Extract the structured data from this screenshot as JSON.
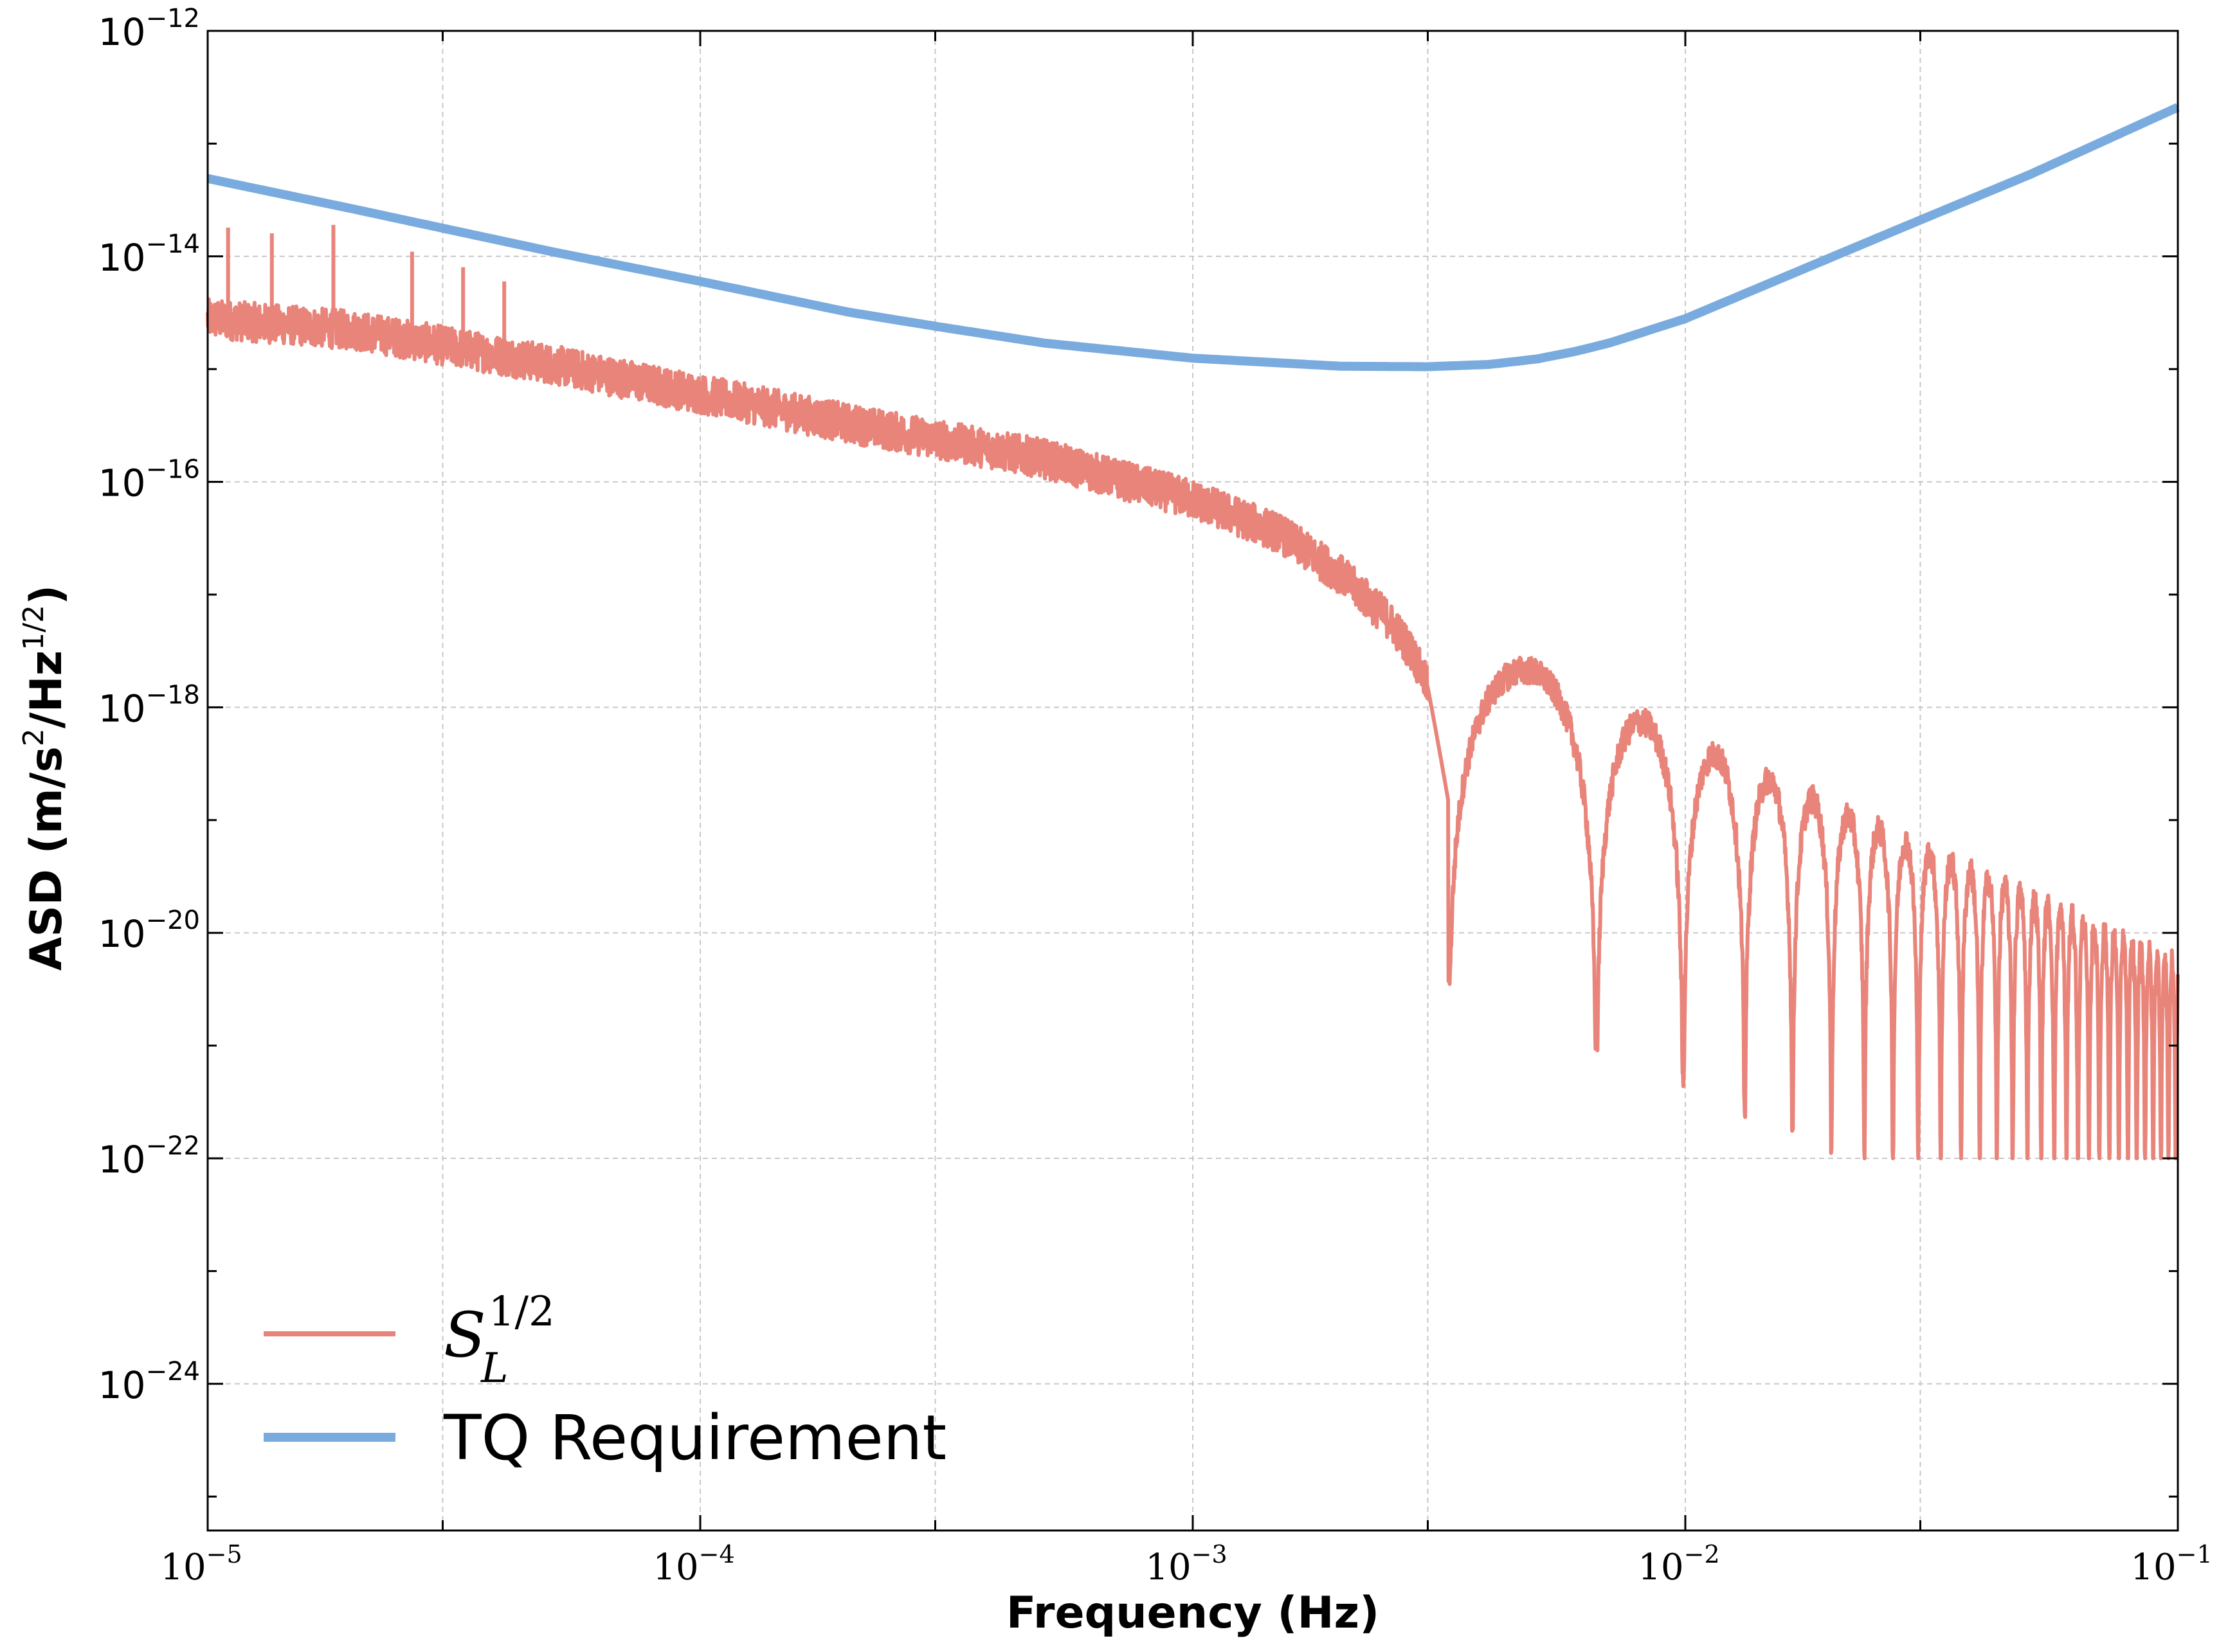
{
  "chart_data": {
    "type": "line",
    "xlabel": "Frequency (Hz)",
    "ylabel_main": "ASD (m/s",
    "ylabel_sup1": "2",
    "ylabel_mid": "/Hz",
    "ylabel_sup2": "1/2",
    "ylabel_end": ")",
    "xscale": "log",
    "yscale": "log",
    "xlim": [
      1e-05,
      0.1
    ],
    "ylim": [
      5e-26,
      1e-12
    ],
    "grid": true,
    "legend_position": "lower-left",
    "x_ticks": [
      {
        "base": "10",
        "exp": "−5"
      },
      {
        "base": "10",
        "exp": "−4"
      },
      {
        "base": "10",
        "exp": "−3"
      },
      {
        "base": "10",
        "exp": "−2"
      },
      {
        "base": "10",
        "exp": "−1"
      }
    ],
    "y_ticks": [
      {
        "base": "10",
        "exp": "−12"
      },
      {
        "base": "10",
        "exp": "−14"
      },
      {
        "base": "10",
        "exp": "−16"
      },
      {
        "base": "10",
        "exp": "−18"
      },
      {
        "base": "10",
        "exp": "−20"
      },
      {
        "base": "10",
        "exp": "−22"
      },
      {
        "base": "10",
        "exp": "−24"
      }
    ],
    "series": [
      {
        "name_base": "S",
        "name_sub": "L",
        "name_sup": "1/2",
        "color": "#e8847a",
        "envelope": {
          "x": [
            1e-05,
            2e-05,
            5e-05,
            0.0001,
            0.0002,
            0.0005,
            0.001,
            0.0015,
            0.002,
            0.0025,
            0.0028,
            0.003
          ],
          "y": [
            2.8e-15,
            2.2e-15,
            1.1e-15,
            6e-16,
            3.3e-16,
            1.6e-16,
            7e-17,
            3.5e-17,
            1.5e-17,
            6e-18,
            3e-18,
            1.5e-18
          ]
        },
        "lobes": {
          "peak_at_1e-2": 5e-19,
          "slope": -2,
          "first_null": 0.0033,
          "null_spacing": 0.0033,
          "null_depth_floor": 5e-23
        },
        "spikes": {
          "x": [
            1.1e-05,
            1.35e-05,
            1.8e-05,
            2.6e-05,
            3.3e-05,
            4e-05
          ],
          "y": [
            1.8e-14,
            1.6e-14,
            1.9e-14,
            1.1e-14,
            8e-15,
            6e-15
          ]
        }
      },
      {
        "name": "TQ Requirement",
        "color": "#7aabde",
        "x": [
          1e-05,
          2e-05,
          5e-05,
          0.0001,
          0.0002,
          0.0003,
          0.0005,
          0.001,
          0.002,
          0.003,
          0.004,
          0.005,
          0.006,
          0.007,
          0.01,
          0.02,
          0.03,
          0.05,
          0.1
        ],
        "y": [
          4.9e-14,
          2.6e-14,
          1.1e-14,
          6e-15,
          3.2e-15,
          2.4e-15,
          1.7e-15,
          1.25e-15,
          1.06e-15,
          1.05e-15,
          1.1e-15,
          1.23e-15,
          1.44e-15,
          1.7e-15,
          2.8e-15,
          1e-14,
          2.1e-14,
          5.3e-14,
          2.1e-13
        ]
      }
    ]
  }
}
